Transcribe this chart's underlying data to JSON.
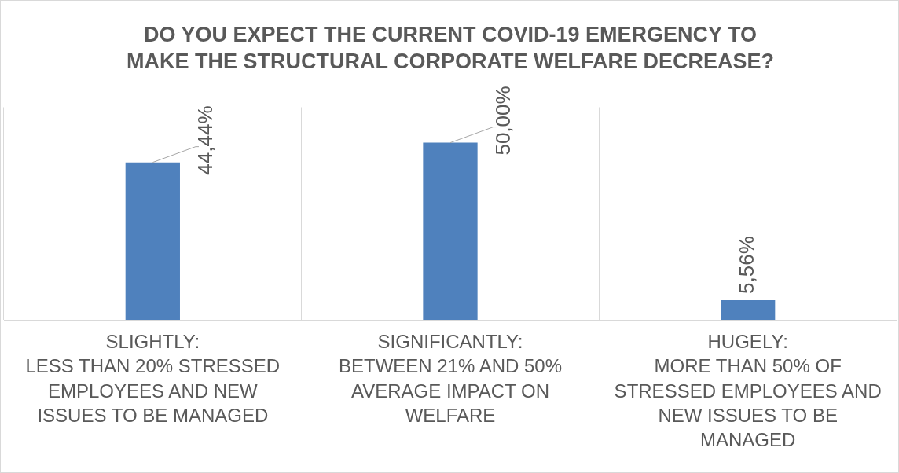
{
  "chart_data": {
    "type": "bar",
    "title": "DO YOU EXPECT THE CURRENT COVID-19 EMERGENCY TO MAKE THE STRUCTURAL CORPORATE WELFARE DECREASE?",
    "categories": [
      "SLIGHTLY:\nLESS THAN 20% STRESSED EMPLOYEES AND NEW ISSUES TO BE MANAGED",
      "SIGNIFICANTLY:\nBETWEEN 21% AND 50% AVERAGE IMPACT ON WELFARE",
      "HUGELY:\nMORE THAN 50% OF STRESSED EMPLOYEES AND NEW ISSUES TO BE MANAGED"
    ],
    "values": [
      44.44,
      50.0,
      5.56
    ],
    "value_labels": [
      "44,44%",
      "50,00%",
      "5,56%"
    ],
    "color": "#4f81bd",
    "ylim": [
      0,
      60
    ],
    "tick_labels": "x",
    "grid": "x",
    "legend": false
  }
}
